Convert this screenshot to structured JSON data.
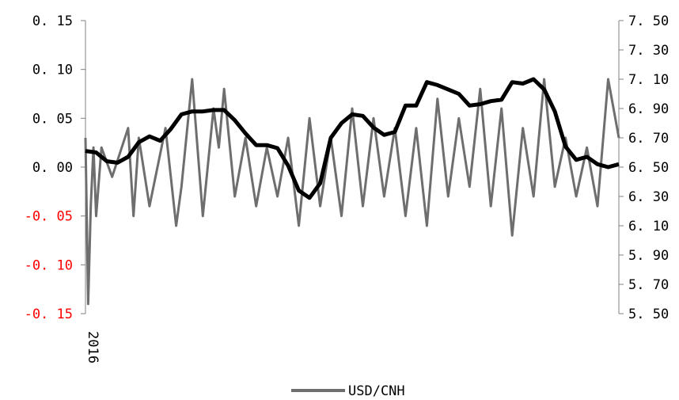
{
  "chart_data": {
    "type": "line",
    "title": "",
    "xlabel": "",
    "x_tick_labels": [
      "2016"
    ],
    "y_left": {
      "ylim": [
        -0.15,
        0.15
      ],
      "ticks": [
        "0. 15",
        "0. 10",
        "0. 05",
        "0. 00",
        "-0. 05",
        "-0. 10",
        "-0. 15"
      ],
      "negative_tick_color": "#ff0000"
    },
    "y_right": {
      "ylim": [
        5.5,
        7.5
      ],
      "ticks": [
        "7. 50",
        "7. 30",
        "7. 10",
        "6. 90",
        "6. 70",
        "6. 50",
        "6. 30",
        "6. 10",
        "5. 90",
        "5. 70",
        "5. 50"
      ]
    },
    "grid": false,
    "legend": {
      "position": "bottom",
      "entries": [
        "USD/CNH"
      ]
    },
    "series": [
      {
        "name": "USD/CNH",
        "axis": "right",
        "color": "#000000",
        "x": [
          0,
          0.02,
          0.04,
          0.06,
          0.08,
          0.1,
          0.12,
          0.14,
          0.16,
          0.18,
          0.2,
          0.22,
          0.24,
          0.26,
          0.28,
          0.3,
          0.32,
          0.34,
          0.36,
          0.38,
          0.4,
          0.42,
          0.44,
          0.46,
          0.48,
          0.5,
          0.52,
          0.54,
          0.56,
          0.58,
          0.6,
          0.62,
          0.64,
          0.66,
          0.68,
          0.7,
          0.72,
          0.74,
          0.76,
          0.78,
          0.8,
          0.82,
          0.84,
          0.86,
          0.88,
          0.9,
          0.92,
          0.94,
          0.96,
          0.98,
          1.0
        ],
        "values": [
          6.61,
          6.6,
          6.54,
          6.53,
          6.57,
          6.67,
          6.71,
          6.68,
          6.76,
          6.86,
          6.88,
          6.88,
          6.89,
          6.89,
          6.82,
          6.73,
          6.65,
          6.65,
          6.63,
          6.51,
          6.34,
          6.29,
          6.39,
          6.7,
          6.8,
          6.86,
          6.85,
          6.77,
          6.72,
          6.74,
          6.92,
          6.92,
          7.08,
          7.06,
          7.03,
          7.0,
          6.92,
          6.93,
          6.95,
          6.96,
          7.08,
          7.07,
          7.1,
          7.03,
          6.88,
          6.64,
          6.55,
          6.57,
          6.52,
          6.5,
          6.52
        ]
      },
      {
        "name": "",
        "axis": "left",
        "color": "#6e6e6e",
        "x": [
          0,
          0.005,
          0.01,
          0.015,
          0.02,
          0.03,
          0.05,
          0.08,
          0.09,
          0.1,
          0.12,
          0.15,
          0.17,
          0.18,
          0.2,
          0.22,
          0.24,
          0.25,
          0.26,
          0.28,
          0.3,
          0.32,
          0.34,
          0.36,
          0.38,
          0.4,
          0.42,
          0.44,
          0.46,
          0.48,
          0.5,
          0.52,
          0.54,
          0.56,
          0.58,
          0.6,
          0.62,
          0.64,
          0.66,
          0.68,
          0.7,
          0.72,
          0.74,
          0.76,
          0.78,
          0.8,
          0.82,
          0.84,
          0.86,
          0.88,
          0.9,
          0.92,
          0.94,
          0.96,
          0.98,
          1.0
        ],
        "values": [
          0.03,
          -0.14,
          -0.04,
          0.02,
          -0.05,
          0.02,
          -0.01,
          0.04,
          -0.05,
          0.03,
          -0.04,
          0.04,
          -0.06,
          -0.02,
          0.09,
          -0.05,
          0.06,
          0.02,
          0.08,
          -0.03,
          0.03,
          -0.04,
          0.02,
          -0.03,
          0.03,
          -0.06,
          0.05,
          -0.04,
          0.03,
          -0.05,
          0.06,
          -0.04,
          0.05,
          -0.03,
          0.04,
          -0.05,
          0.04,
          -0.06,
          0.07,
          -0.03,
          0.05,
          -0.02,
          0.08,
          -0.04,
          0.06,
          -0.07,
          0.04,
          -0.03,
          0.09,
          -0.02,
          0.03,
          -0.03,
          0.02,
          -0.04,
          0.09,
          0.03
        ]
      }
    ]
  }
}
